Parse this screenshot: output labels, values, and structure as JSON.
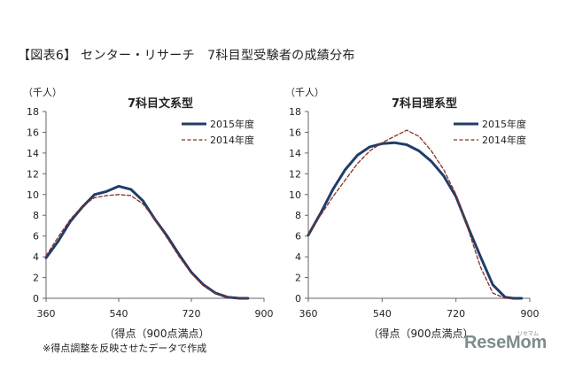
{
  "figure_title": "【図表6】 センター・リサーチ　7科目型受験者の成績分布",
  "footnote": "※得点調整を反映させたデータで作成",
  "logo": {
    "text": "ReseMom",
    "sub": "リセマム"
  },
  "colors": {
    "series_2015": "#1f3d6b",
    "series_2014": "#8b2e23",
    "axis": "#666666",
    "text": "#222222"
  },
  "chart_data": [
    {
      "type": "line",
      "title": "7科目文系型",
      "unit_label": "（千人）",
      "xlabel": "（得点（900点満点）",
      "xlim": [
        360,
        900
      ],
      "xticks": [
        360,
        540,
        720,
        900
      ],
      "ylim": [
        0,
        18
      ],
      "yticks": [
        0,
        2,
        4,
        6,
        8,
        10,
        12,
        14,
        16,
        18
      ],
      "series": [
        {
          "name": "2015年度",
          "style": "solid",
          "x": [
            360,
            390,
            420,
            450,
            480,
            510,
            540,
            570,
            600,
            630,
            660,
            690,
            720,
            750,
            780,
            810,
            840,
            860
          ],
          "y": [
            3.9,
            5.5,
            7.4,
            8.8,
            10.0,
            10.3,
            10.8,
            10.5,
            9.4,
            7.6,
            6.0,
            4.2,
            2.5,
            1.3,
            0.5,
            0.1,
            0.0,
            0.0
          ]
        },
        {
          "name": "2014年度",
          "style": "dashed",
          "x": [
            360,
            390,
            420,
            450,
            480,
            510,
            540,
            570,
            600,
            630,
            660,
            690,
            720,
            750,
            780,
            810,
            840,
            860
          ],
          "y": [
            4.1,
            5.9,
            7.6,
            8.9,
            9.7,
            9.9,
            10.0,
            9.9,
            9.1,
            7.6,
            5.8,
            4.0,
            2.4,
            1.2,
            0.5,
            0.1,
            0.0,
            0.0
          ]
        }
      ]
    },
    {
      "type": "line",
      "title": "7科目理系型",
      "unit_label": "（千人）",
      "xlabel": "（得点（900点満点）",
      "xlim": [
        360,
        900
      ],
      "xticks": [
        360,
        540,
        720,
        900
      ],
      "ylim": [
        0,
        18
      ],
      "yticks": [
        0,
        2,
        4,
        6,
        8,
        10,
        12,
        14,
        16,
        18
      ],
      "series": [
        {
          "name": "2015年度",
          "style": "solid",
          "x": [
            360,
            390,
            420,
            450,
            480,
            510,
            540,
            570,
            600,
            630,
            660,
            690,
            720,
            750,
            780,
            810,
            840,
            860,
            880
          ],
          "y": [
            6.1,
            8.2,
            10.5,
            12.4,
            13.8,
            14.6,
            14.9,
            15.0,
            14.8,
            14.2,
            13.2,
            11.8,
            9.8,
            6.8,
            4.0,
            1.3,
            0.1,
            0.0,
            0.0
          ]
        },
        {
          "name": "2014年度",
          "style": "dashed",
          "x": [
            360,
            390,
            420,
            450,
            480,
            510,
            540,
            570,
            600,
            630,
            660,
            690,
            720,
            750,
            780,
            810,
            840,
            860
          ],
          "y": [
            6.2,
            8.0,
            9.8,
            11.4,
            13.0,
            14.2,
            15.0,
            15.6,
            16.2,
            15.6,
            14.2,
            12.4,
            10.0,
            6.6,
            3.0,
            0.5,
            0.0,
            0.0
          ]
        }
      ]
    }
  ]
}
